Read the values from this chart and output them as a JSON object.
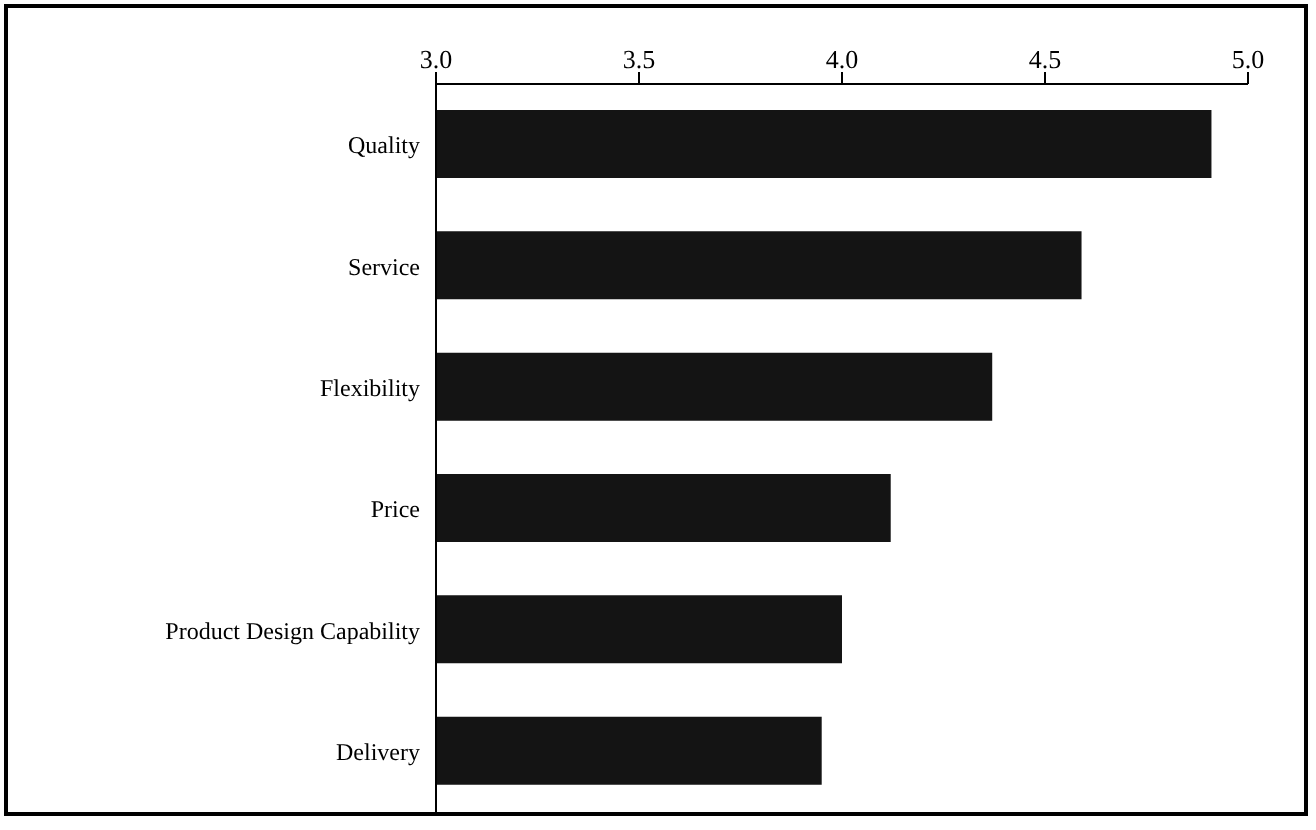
{
  "chart_data": {
    "type": "bar",
    "orientation": "horizontal",
    "categories": [
      "Quality",
      "Service",
      "Flexibility",
      "Price",
      "Product Design Capability",
      "Delivery"
    ],
    "values": [
      4.91,
      4.59,
      4.37,
      4.12,
      4.0,
      3.95
    ],
    "color": "#141414",
    "xlim": [
      3.0,
      5.0
    ],
    "xticks": [
      {
        "value": 3.0,
        "label": "3.0"
      },
      {
        "value": 3.5,
        "label": "3.5"
      },
      {
        "value": 4.0,
        "label": "4.0"
      },
      {
        "value": 4.5,
        "label": "4.5"
      },
      {
        "value": 5.0,
        "label": "5.0"
      }
    ],
    "grid": false,
    "legend": false
  }
}
